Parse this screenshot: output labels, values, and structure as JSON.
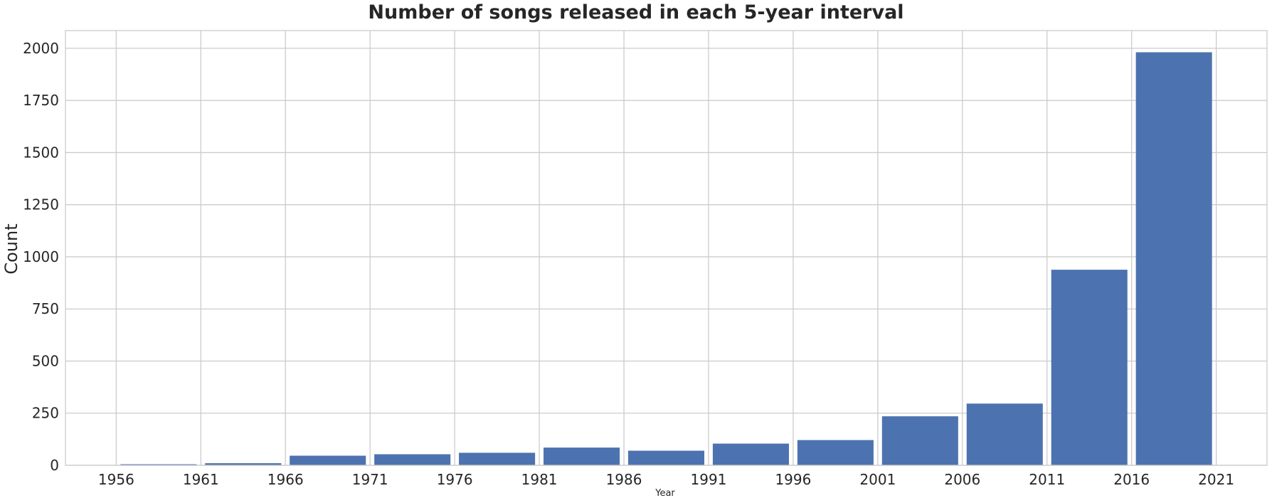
{
  "chart_data": {
    "type": "bar",
    "title": "Number of songs released in each 5-year interval",
    "xlabel": "Year",
    "ylabel": "Count",
    "x_ticks": [
      "1956",
      "1961",
      "1966",
      "1971",
      "1976",
      "1981",
      "1986",
      "1991",
      "1996",
      "2001",
      "2006",
      "2011",
      "2016",
      "2021"
    ],
    "y_ticks": [
      "0",
      "250",
      "500",
      "750",
      "1000",
      "1250",
      "1500",
      "1750",
      "2000"
    ],
    "bins": [
      {
        "start": 1956,
        "end": 1961,
        "value": 5
      },
      {
        "start": 1961,
        "end": 1966,
        "value": 10
      },
      {
        "start": 1966,
        "end": 1971,
        "value": 46
      },
      {
        "start": 1971,
        "end": 1976,
        "value": 53
      },
      {
        "start": 1976,
        "end": 1981,
        "value": 60
      },
      {
        "start": 1981,
        "end": 1986,
        "value": 85
      },
      {
        "start": 1986,
        "end": 1991,
        "value": 70
      },
      {
        "start": 1991,
        "end": 1996,
        "value": 104
      },
      {
        "start": 1996,
        "end": 2001,
        "value": 121
      },
      {
        "start": 2001,
        "end": 2006,
        "value": 235
      },
      {
        "start": 2006,
        "end": 2011,
        "value": 296
      },
      {
        "start": 2011,
        "end": 2016,
        "value": 938
      },
      {
        "start": 2016,
        "end": 2021,
        "value": 1981
      }
    ],
    "xlim": [
      1953,
      2024
    ],
    "ylim": [
      0,
      2085
    ],
    "bar_color": "#4c72b0",
    "grid": true
  }
}
